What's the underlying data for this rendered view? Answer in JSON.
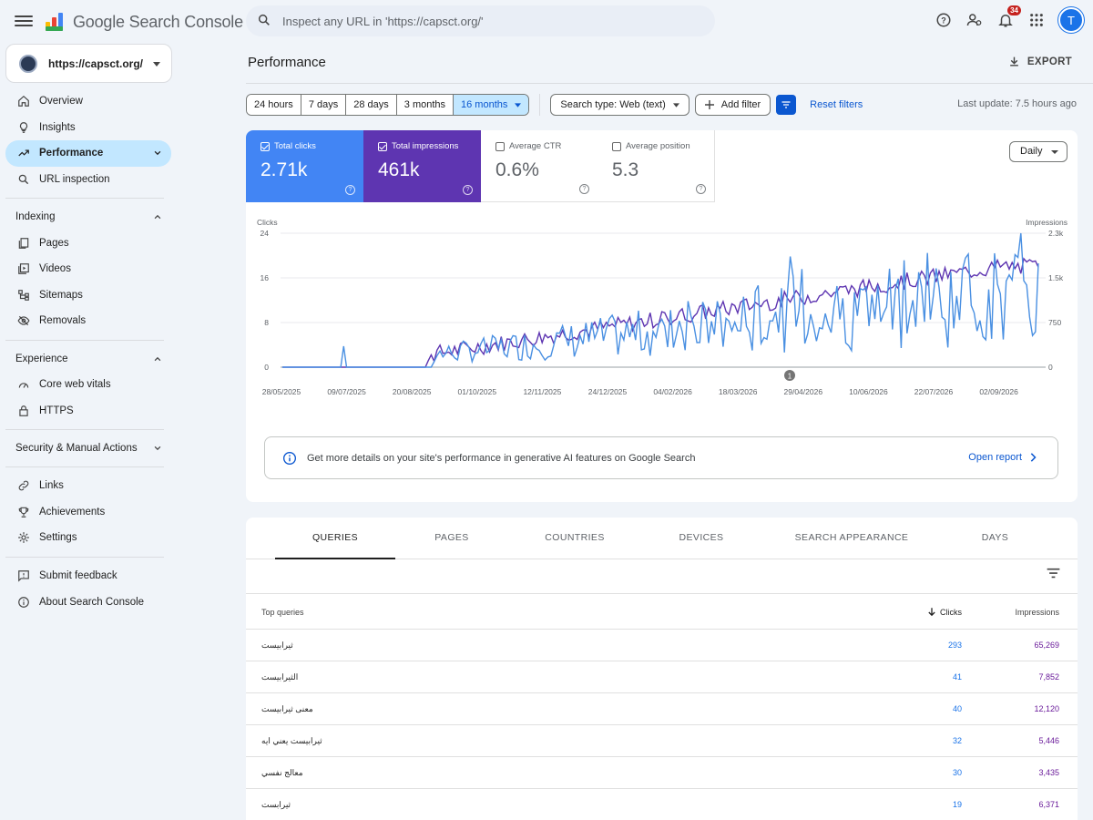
{
  "app": {
    "title": "Google Search Console",
    "search_placeholder": "Inspect any URL in 'https://capsct.org/'",
    "notification_count": "34",
    "avatar_letter": "T"
  },
  "property": {
    "label": "https://capsct.org/"
  },
  "sidebar": {
    "top": [
      {
        "label": "Overview",
        "icon": "home-icon"
      },
      {
        "label": "Insights",
        "icon": "lightbulb-icon"
      },
      {
        "label": "Performance",
        "icon": "trending-up-icon",
        "active": true
      },
      {
        "label": "URL inspection",
        "icon": "search-icon"
      }
    ],
    "indexing_header": "Indexing",
    "indexing": [
      {
        "label": "Pages",
        "icon": "pages-icon"
      },
      {
        "label": "Videos",
        "icon": "video-icon"
      },
      {
        "label": "Sitemaps",
        "icon": "sitemap-icon"
      },
      {
        "label": "Removals",
        "icon": "eye-off-icon"
      }
    ],
    "experience_header": "Experience",
    "experience": [
      {
        "label": "Core web vitals",
        "icon": "gauge-icon"
      },
      {
        "label": "HTTPS",
        "icon": "lock-icon"
      }
    ],
    "security_header": "Security & Manual Actions",
    "more": [
      {
        "label": "Links",
        "icon": "link-icon"
      },
      {
        "label": "Achievements",
        "icon": "trophy-icon"
      },
      {
        "label": "Settings",
        "icon": "gear-icon"
      }
    ],
    "footer": [
      {
        "label": "Submit feedback",
        "icon": "feedback-icon"
      },
      {
        "label": "About Search Console",
        "icon": "info-icon"
      }
    ]
  },
  "main": {
    "title": "Performance",
    "export_label": "EXPORT",
    "date_ranges": [
      "24 hours",
      "7 days",
      "28 days",
      "3 months",
      "16 months"
    ],
    "selected_range": "16 months",
    "search_type": "Search type: Web (text)",
    "add_filter": "Add filter",
    "reset_filters": "Reset filters",
    "last_update": "Last update: 7.5 hours ago"
  },
  "metrics": {
    "clicks": {
      "label": "Total clicks",
      "value": "2.71k"
    },
    "impressions": {
      "label": "Total impressions",
      "value": "461k"
    },
    "ctr": {
      "label": "Average CTR",
      "value": "0.6%"
    },
    "position": {
      "label": "Average position",
      "value": "5.3"
    }
  },
  "granularity": "Daily",
  "chart_data": {
    "type": "line",
    "left_axis_label": "Clicks",
    "right_axis_label": "Impressions",
    "left_ticks": [
      "24",
      "16",
      "8",
      "0"
    ],
    "right_ticks": [
      "2.3k",
      "1.5k",
      "750",
      "0"
    ],
    "x_ticks": [
      "28/05/2025",
      "09/07/2025",
      "20/08/2025",
      "01/10/2025",
      "12/11/2025",
      "24/12/2025",
      "04/02/2026",
      "18/03/2026",
      "29/04/2026",
      "10/06/2026",
      "22/07/2026",
      "02/09/2026"
    ],
    "ylim_clicks": [
      0,
      24
    ],
    "ylim_impressions": [
      0,
      2300
    ],
    "annotation_label": "1",
    "series": [
      {
        "name": "Clicks",
        "color": "#4a90e2"
      },
      {
        "name": "Impressions",
        "color": "#5e35b1"
      }
    ]
  },
  "ai_banner": {
    "text": "Get more details on your site's performance in generative AI features on Google Search",
    "link": "Open report"
  },
  "tabs": [
    "QUERIES",
    "PAGES",
    "COUNTRIES",
    "DEVICES",
    "SEARCH APPEARANCE",
    "DAYS"
  ],
  "table": {
    "col_query": "Top queries",
    "col_clicks": "Clicks",
    "col_impressions": "Impressions",
    "rows": [
      {
        "query": "ثيرابيست",
        "clicks": "293",
        "impressions": "65,269"
      },
      {
        "query": "الثيرابيست",
        "clicks": "41",
        "impressions": "7,852"
      },
      {
        "query": "معنى ثيرابيست",
        "clicks": "40",
        "impressions": "12,120"
      },
      {
        "query": "ثيرابيست يعني ايه",
        "clicks": "32",
        "impressions": "5,446"
      },
      {
        "query": "معالج نفسي",
        "clicks": "30",
        "impressions": "3,435"
      },
      {
        "query": "ثيرابست",
        "clicks": "19",
        "impressions": "6,371"
      }
    ]
  }
}
